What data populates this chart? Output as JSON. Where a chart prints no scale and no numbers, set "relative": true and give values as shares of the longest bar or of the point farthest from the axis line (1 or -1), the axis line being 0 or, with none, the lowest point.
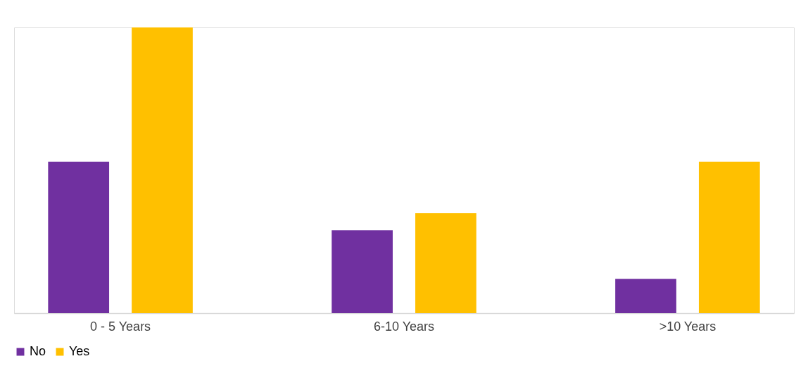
{
  "chart_data": {
    "type": "bar",
    "relative": true,
    "categories": [
      "0 - 5 Years",
      "6-10 Years",
      ">10 Years"
    ],
    "series": [
      {
        "name": "No",
        "color": "#7030a0",
        "values": [
          0.53,
          0.29,
          0.12
        ]
      },
      {
        "name": "Yes",
        "color": "#ffc000",
        "values": [
          1,
          0.35,
          0.53
        ]
      }
    ],
    "legend": "bottom",
    "grid": false
  }
}
